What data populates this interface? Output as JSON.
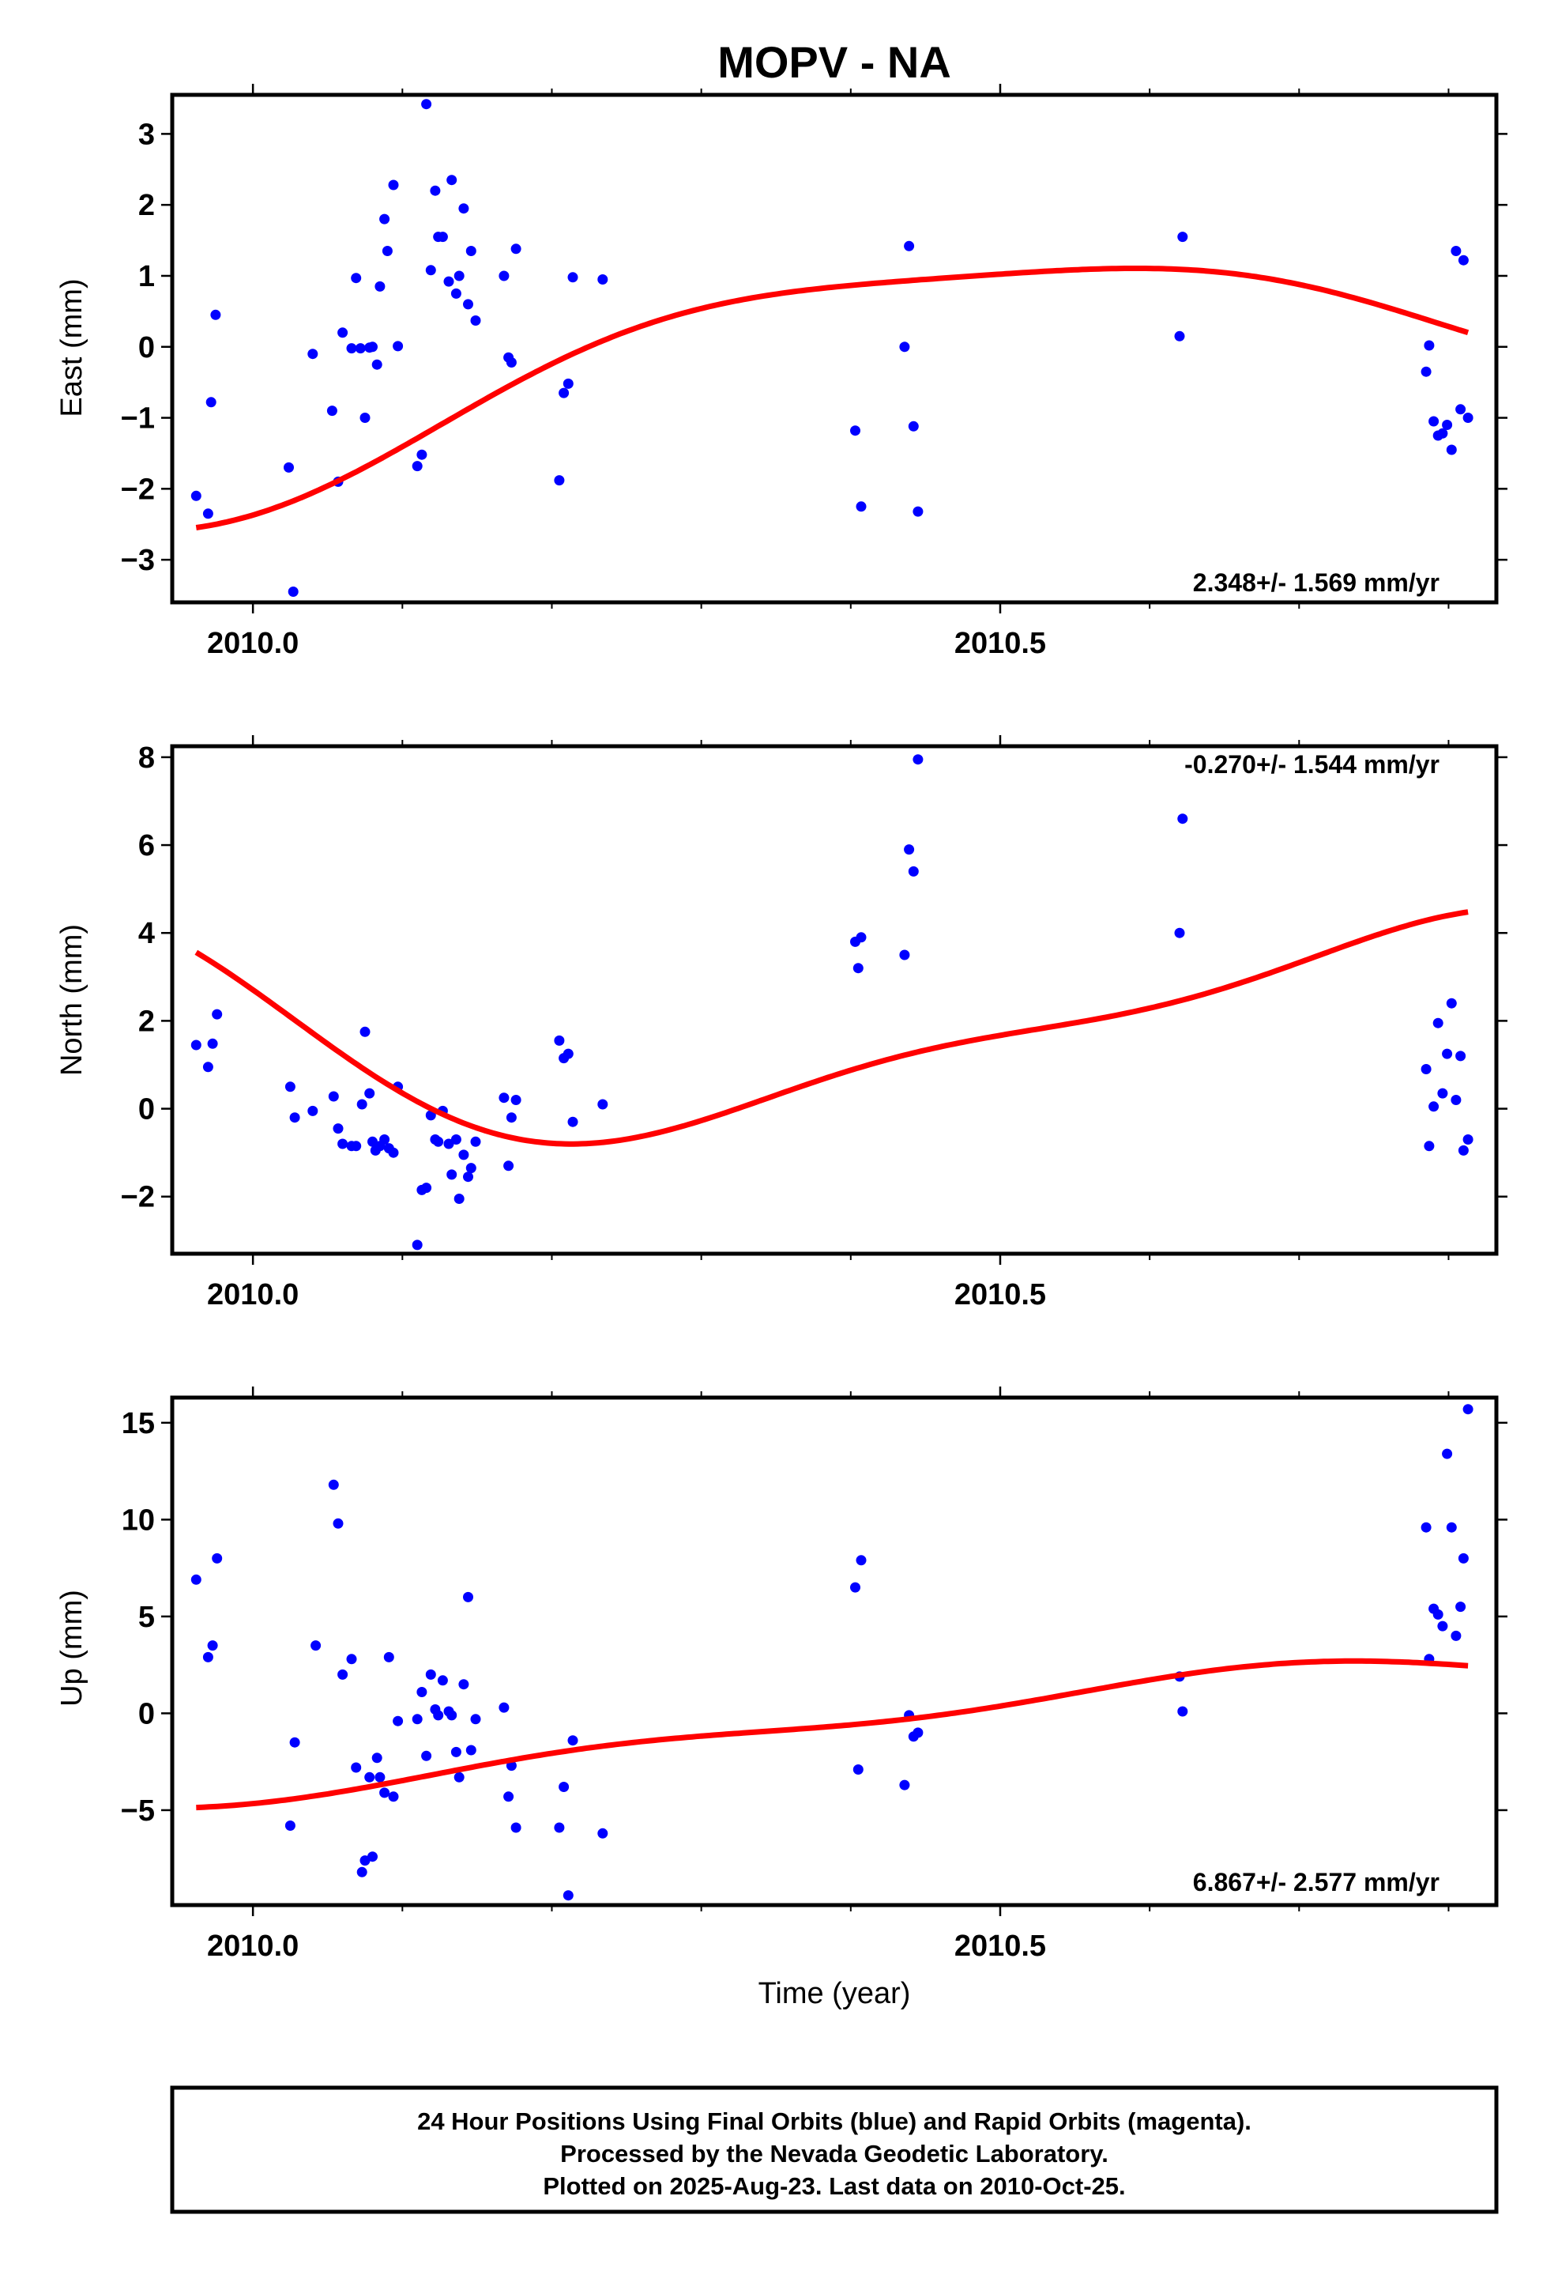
{
  "title": "MOPV - NA",
  "xlabel": "Time (year)",
  "footer": {
    "line1": "24 Hour Positions Using Final Orbits (blue) and Rapid Orbits (magenta).",
    "line2": "Processed by the Nevada Geodetic Laboratory.",
    "line3": "Plotted on 2025-Aug-23. Last data on 2010-Oct-25."
  },
  "colors": {
    "points": "#0000ff",
    "fit": "#ff0000",
    "frame": "#000000"
  },
  "chart_data": [
    {
      "type": "scatter",
      "ylabel": "East (mm)",
      "rate_label": "2.348+/- 1.569 mm/yr",
      "xlim": [
        2009.946,
        2010.832
      ],
      "ylim": [
        -3.6,
        3.55
      ],
      "yticks": [
        -3,
        -2,
        -1,
        0,
        1,
        2,
        3
      ],
      "ytick_labels": [
        "−3",
        "−2",
        "−1",
        "0",
        "1",
        "2",
        "3"
      ],
      "xticks": [
        2010.0,
        2010.5
      ],
      "xtick_labels": [
        "2010.0",
        "2010.5"
      ],
      "xminor": [
        2010.1,
        2010.2,
        2010.3,
        2010.4,
        2010.6,
        2010.7,
        2010.8
      ],
      "points": [
        [
          2009.962,
          -2.1
        ],
        [
          2009.97,
          -2.35
        ],
        [
          2009.972,
          -0.78
        ],
        [
          2009.975,
          0.45
        ],
        [
          2010.024,
          -1.7
        ],
        [
          2010.027,
          -3.45
        ],
        [
          2010.04,
          -0.1
        ],
        [
          2010.053,
          -0.9
        ],
        [
          2010.057,
          -1.9
        ],
        [
          2010.06,
          0.2
        ],
        [
          2010.066,
          -0.02
        ],
        [
          2010.069,
          0.97
        ],
        [
          2010.072,
          -0.02
        ],
        [
          2010.075,
          -1.0
        ],
        [
          2010.078,
          -0.01
        ],
        [
          2010.08,
          0.0
        ],
        [
          2010.083,
          -0.25
        ],
        [
          2010.085,
          0.85
        ],
        [
          2010.088,
          1.8
        ],
        [
          2010.09,
          1.35
        ],
        [
          2010.094,
          2.28
        ],
        [
          2010.097,
          0.01
        ],
        [
          2010.11,
          -1.68
        ],
        [
          2010.113,
          -1.52
        ],
        [
          2010.116,
          3.42
        ],
        [
          2010.119,
          1.08
        ],
        [
          2010.122,
          2.2
        ],
        [
          2010.124,
          1.55
        ],
        [
          2010.127,
          1.55
        ],
        [
          2010.131,
          0.92
        ],
        [
          2010.133,
          2.35
        ],
        [
          2010.136,
          0.75
        ],
        [
          2010.138,
          1.0
        ],
        [
          2010.141,
          1.95
        ],
        [
          2010.144,
          0.6
        ],
        [
          2010.146,
          1.35
        ],
        [
          2010.149,
          0.37
        ],
        [
          2010.168,
          1.0
        ],
        [
          2010.171,
          -0.15
        ],
        [
          2010.173,
          -0.22
        ],
        [
          2010.176,
          1.38
        ],
        [
          2010.205,
          -1.88
        ],
        [
          2010.208,
          -0.65
        ],
        [
          2010.211,
          -0.52
        ],
        [
          2010.214,
          0.98
        ],
        [
          2010.234,
          0.95
        ],
        [
          2010.403,
          -1.18
        ],
        [
          2010.407,
          -2.25
        ],
        [
          2010.436,
          0.0
        ],
        [
          2010.439,
          1.42
        ],
        [
          2010.442,
          -1.12
        ],
        [
          2010.445,
          -2.32
        ],
        [
          2010.622,
          1.55
        ],
        [
          2010.62,
          0.15
        ],
        [
          2010.785,
          -0.35
        ],
        [
          2010.787,
          0.02
        ],
        [
          2010.79,
          -1.05
        ],
        [
          2010.793,
          -1.25
        ],
        [
          2010.796,
          -1.22
        ],
        [
          2010.799,
          -1.1
        ],
        [
          2010.802,
          -1.45
        ],
        [
          2010.805,
          1.35
        ],
        [
          2010.808,
          -0.88
        ],
        [
          2010.81,
          1.22
        ],
        [
          2010.813,
          -1.0
        ]
      ],
      "fit": {
        "x0": 2009.962,
        "x1": 2010.813,
        "mean": -0.1,
        "rate": 2.348,
        "a1": 0.39,
        "b1": -1.11,
        "a2": 0.12,
        "b2": -0.25
      }
    },
    {
      "type": "scatter",
      "ylabel": "North (mm)",
      "rate_label": "-0.270+/- 1.544 mm/yr",
      "xlim": [
        2009.946,
        2010.832
      ],
      "ylim": [
        -3.3,
        8.25
      ],
      "yticks": [
        -2,
        0,
        2,
        4,
        6,
        8
      ],
      "ytick_labels": [
        "−2",
        "0",
        "2",
        "4",
        "6",
        "8"
      ],
      "xticks": [
        2010.0,
        2010.5
      ],
      "xtick_labels": [
        "2010.0",
        "2010.5"
      ],
      "xminor": [
        2010.1,
        2010.2,
        2010.3,
        2010.4,
        2010.6,
        2010.7,
        2010.8
      ],
      "points": [
        [
          2009.962,
          1.45
        ],
        [
          2009.97,
          0.95
        ],
        [
          2009.973,
          1.48
        ],
        [
          2009.976,
          2.15
        ],
        [
          2010.025,
          0.5
        ],
        [
          2010.028,
          -0.2
        ],
        [
          2010.04,
          -0.05
        ],
        [
          2010.054,
          0.28
        ],
        [
          2010.057,
          -0.45
        ],
        [
          2010.06,
          -0.8
        ],
        [
          2010.066,
          -0.85
        ],
        [
          2010.069,
          -0.85
        ],
        [
          2010.073,
          0.1
        ],
        [
          2010.075,
          1.75
        ],
        [
          2010.078,
          0.35
        ],
        [
          2010.08,
          -0.75
        ],
        [
          2010.082,
          -0.95
        ],
        [
          2010.085,
          -0.85
        ],
        [
          2010.088,
          -0.7
        ],
        [
          2010.091,
          -0.9
        ],
        [
          2010.094,
          -1.0
        ],
        [
          2010.097,
          0.5
        ],
        [
          2010.11,
          -3.1
        ],
        [
          2010.113,
          -1.85
        ],
        [
          2010.116,
          -1.8
        ],
        [
          2010.119,
          -0.15
        ],
        [
          2010.122,
          -0.7
        ],
        [
          2010.124,
          -0.75
        ],
        [
          2010.127,
          -0.05
        ],
        [
          2010.131,
          -0.8
        ],
        [
          2010.133,
          -1.5
        ],
        [
          2010.136,
          -0.7
        ],
        [
          2010.138,
          -2.05
        ],
        [
          2010.141,
          -1.05
        ],
        [
          2010.144,
          -1.55
        ],
        [
          2010.146,
          -1.35
        ],
        [
          2010.149,
          -0.75
        ],
        [
          2010.168,
          0.25
        ],
        [
          2010.171,
          -1.3
        ],
        [
          2010.173,
          -0.2
        ],
        [
          2010.176,
          0.2
        ],
        [
          2010.205,
          1.55
        ],
        [
          2010.208,
          1.15
        ],
        [
          2010.211,
          1.25
        ],
        [
          2010.214,
          -0.3
        ],
        [
          2010.234,
          0.1
        ],
        [
          2010.403,
          3.8
        ],
        [
          2010.405,
          3.2
        ],
        [
          2010.407,
          3.9
        ],
        [
          2010.436,
          3.5
        ],
        [
          2010.439,
          5.9
        ],
        [
          2010.442,
          5.4
        ],
        [
          2010.445,
          7.95
        ],
        [
          2010.62,
          4.0
        ],
        [
          2010.622,
          6.6
        ],
        [
          2010.785,
          0.9
        ],
        [
          2010.787,
          -0.85
        ],
        [
          2010.79,
          0.05
        ],
        [
          2010.793,
          1.95
        ],
        [
          2010.796,
          0.35
        ],
        [
          2010.799,
          1.25
        ],
        [
          2010.802,
          2.4
        ],
        [
          2010.805,
          0.2
        ],
        [
          2010.808,
          1.2
        ],
        [
          2010.81,
          -0.95
        ],
        [
          2010.813,
          -0.7
        ]
      ],
      "fit": {
        "x0": 2009.962,
        "x1": 2010.813,
        "mean": 1.9,
        "rate": -0.27,
        "a1": -2.38,
        "b1": 0.45,
        "a2": -0.7,
        "b2": 0.25
      }
    },
    {
      "type": "scatter",
      "ylabel": "Up (mm)",
      "rate_label": "6.867+/- 2.577 mm/yr",
      "xlim": [
        2009.946,
        2010.832
      ],
      "ylim": [
        -9.9,
        16.3
      ],
      "yticks": [
        -5,
        0,
        5,
        10,
        15
      ],
      "ytick_labels": [
        "−5",
        "0",
        "5",
        "10",
        "15"
      ],
      "xticks": [
        2010.0,
        2010.5
      ],
      "xtick_labels": [
        "2010.0",
        "2010.5"
      ],
      "xminor": [
        2010.1,
        2010.2,
        2010.3,
        2010.4,
        2010.6,
        2010.7,
        2010.8
      ],
      "points": [
        [
          2009.962,
          6.9
        ],
        [
          2009.97,
          2.9
        ],
        [
          2009.973,
          3.5
        ],
        [
          2009.976,
          8.0
        ],
        [
          2010.025,
          -5.8
        ],
        [
          2010.028,
          -1.5
        ],
        [
          2010.042,
          3.5
        ],
        [
          2010.054,
          11.8
        ],
        [
          2010.057,
          9.8
        ],
        [
          2010.06,
          2.0
        ],
        [
          2010.066,
          2.8
        ],
        [
          2010.069,
          -2.8
        ],
        [
          2010.073,
          -8.2
        ],
        [
          2010.075,
          -7.6
        ],
        [
          2010.078,
          -3.3
        ],
        [
          2010.08,
          -7.4
        ],
        [
          2010.083,
          -2.3
        ],
        [
          2010.085,
          -3.3
        ],
        [
          2010.088,
          -4.1
        ],
        [
          2010.091,
          2.9
        ],
        [
          2010.094,
          -4.3
        ],
        [
          2010.097,
          -0.4
        ],
        [
          2010.11,
          -0.3
        ],
        [
          2010.113,
          1.1
        ],
        [
          2010.116,
          -2.2
        ],
        [
          2010.119,
          2.0
        ],
        [
          2010.122,
          0.2
        ],
        [
          2010.124,
          -0.1
        ],
        [
          2010.127,
          1.7
        ],
        [
          2010.131,
          0.1
        ],
        [
          2010.133,
          -0.1
        ],
        [
          2010.136,
          -2.0
        ],
        [
          2010.138,
          -3.3
        ],
        [
          2010.141,
          1.5
        ],
        [
          2010.144,
          6.0
        ],
        [
          2010.146,
          -1.9
        ],
        [
          2010.149,
          -0.3
        ],
        [
          2010.168,
          0.3
        ],
        [
          2010.171,
          -4.3
        ],
        [
          2010.173,
          -2.7
        ],
        [
          2010.176,
          -5.9
        ],
        [
          2010.205,
          -5.9
        ],
        [
          2010.208,
          -3.8
        ],
        [
          2010.211,
          -9.4
        ],
        [
          2010.214,
          -1.4
        ],
        [
          2010.234,
          -6.2
        ],
        [
          2010.403,
          6.5
        ],
        [
          2010.405,
          -2.9
        ],
        [
          2010.407,
          7.9
        ],
        [
          2010.436,
          -3.7
        ],
        [
          2010.439,
          -0.1
        ],
        [
          2010.442,
          -1.2
        ],
        [
          2010.445,
          -1.0
        ],
        [
          2010.62,
          1.9
        ],
        [
          2010.622,
          0.1
        ],
        [
          2010.785,
          9.6
        ],
        [
          2010.787,
          2.8
        ],
        [
          2010.79,
          5.4
        ],
        [
          2010.793,
          5.1
        ],
        [
          2010.796,
          4.5
        ],
        [
          2010.799,
          13.4
        ],
        [
          2010.802,
          9.6
        ],
        [
          2010.805,
          4.0
        ],
        [
          2010.808,
          5.5
        ],
        [
          2010.81,
          8.0
        ],
        [
          2010.813,
          15.7
        ]
      ],
      "fit": {
        "x0": 2009.962,
        "x1": 2010.813,
        "mean": -0.7,
        "rate": 6.867,
        "a1": -0.4,
        "b1": -0.8,
        "a2": 0.25,
        "b2": -0.5
      }
    }
  ]
}
